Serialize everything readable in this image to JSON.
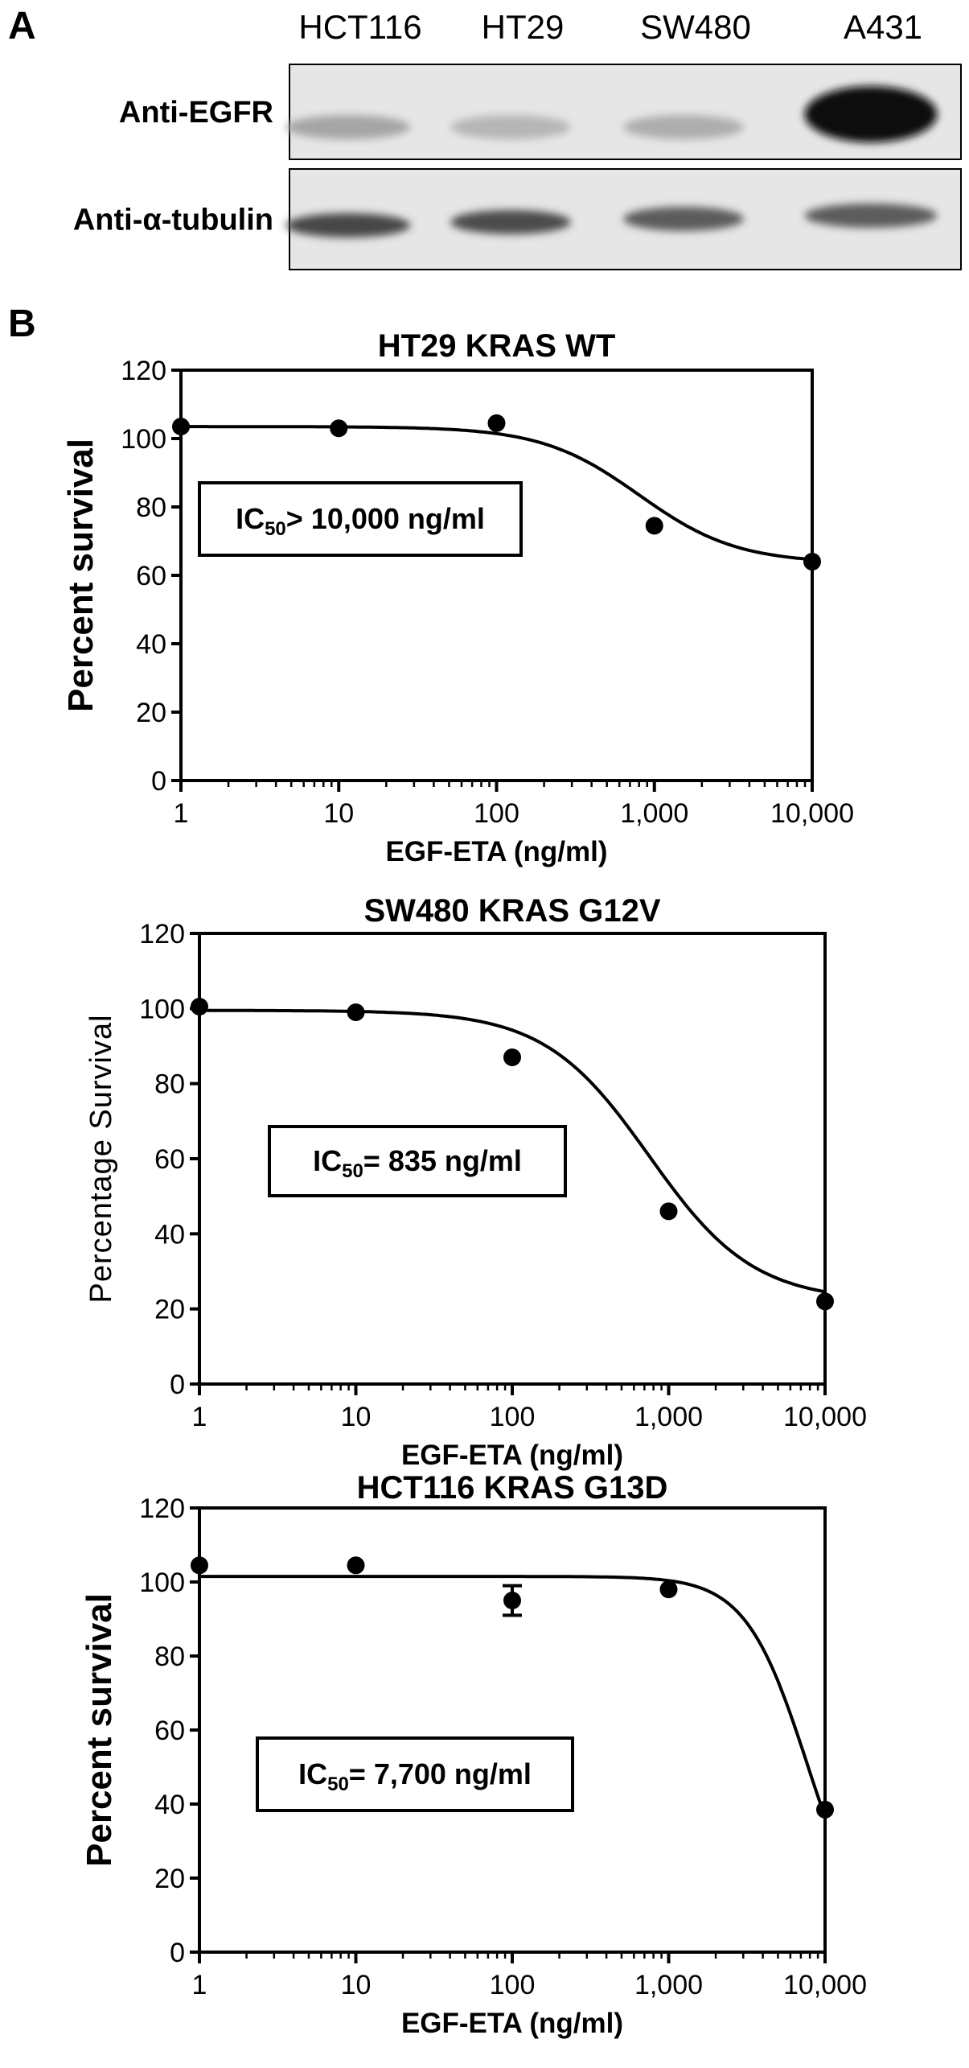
{
  "panel_a": {
    "letter": "A",
    "lanes": [
      "HCT116",
      "HT29",
      "SW480",
      "A431"
    ],
    "blots": [
      {
        "label": "Anti-EGFR",
        "band_intensity": [
          0.28,
          0.2,
          0.24,
          1.0
        ]
      },
      {
        "label": "Anti-α-tubulin",
        "band_intensity": [
          0.72,
          0.7,
          0.62,
          0.62
        ]
      }
    ]
  },
  "panel_b": {
    "letter": "B"
  },
  "chart_data": [
    {
      "type": "scatter",
      "title": "HT29 KRAS WT",
      "xlabel": "EGF-ETA (ng/ml)",
      "ylabel": "Percent survival",
      "ylabel_style": "bold",
      "x_scale": "log",
      "xlim": [
        1,
        10000
      ],
      "ylim": [
        0,
        120
      ],
      "xticks": [
        1,
        10,
        100,
        1000,
        10000
      ],
      "xtick_labels": [
        "1",
        "10",
        "100",
        "1,000",
        "10,000"
      ],
      "yticks": [
        0,
        20,
        40,
        60,
        80,
        100,
        120
      ],
      "points": [
        {
          "x": 1,
          "y": 103.5
        },
        {
          "x": 10,
          "y": 103
        },
        {
          "x": 100,
          "y": 104.5
        },
        {
          "x": 1000,
          "y": 74.5
        },
        {
          "x": 10000,
          "y": 64
        }
      ],
      "fit": {
        "top": 103.5,
        "bottom": 63.5,
        "ic50": 800,
        "hill": 1.4
      },
      "annotation": {
        "pre": "IC",
        "sub": "50",
        "post": "> 10,000 ng/ml"
      },
      "grid": false,
      "legend": "none"
    },
    {
      "type": "scatter",
      "title": "SW480 KRAS G12V",
      "xlabel": "EGF-ETA (ng/ml)",
      "ylabel": "Percentage Survival",
      "ylabel_style": "normal",
      "x_scale": "log",
      "xlim": [
        1,
        10000
      ],
      "ylim": [
        0,
        120
      ],
      "xticks": [
        1,
        10,
        100,
        1000,
        10000
      ],
      "xtick_labels": [
        "1",
        "10",
        "100",
        "1,000",
        "10,000"
      ],
      "yticks": [
        0,
        20,
        40,
        60,
        80,
        100,
        120
      ],
      "points": [
        {
          "x": 1,
          "y": 100.5
        },
        {
          "x": 10,
          "y": 99
        },
        {
          "x": 100,
          "y": 87
        },
        {
          "x": 1000,
          "y": 46
        },
        {
          "x": 10000,
          "y": 22
        }
      ],
      "fit": {
        "top": 99.5,
        "bottom": 22,
        "ic50": 750,
        "hill": 1.3
      },
      "annotation": {
        "pre": "IC",
        "sub": "50",
        "post": "= 835 ng/ml"
      },
      "grid": false,
      "legend": "none"
    },
    {
      "type": "scatter",
      "title": "HCT116 KRAS G13D",
      "xlabel": "EGF-ETA (ng/ml)",
      "ylabel": "Percent survival",
      "ylabel_style": "bold",
      "x_scale": "log",
      "xlim": [
        1,
        10000
      ],
      "ylim": [
        0,
        120
      ],
      "xticks": [
        1,
        10,
        100,
        1000,
        10000
      ],
      "xtick_labels": [
        "1",
        "10",
        "100",
        "1,000",
        "10,000"
      ],
      "yticks": [
        0,
        20,
        40,
        60,
        80,
        100,
        120
      ],
      "points": [
        {
          "x": 1,
          "y": 104.5
        },
        {
          "x": 10,
          "y": 104.5
        },
        {
          "x": 100,
          "y": 95,
          "err": 4
        },
        {
          "x": 1000,
          "y": 98
        },
        {
          "x": 10000,
          "y": 38.5
        }
      ],
      "fit": {
        "top": 101.5,
        "bottom": 0,
        "ic50": 7700,
        "hill": 2.2
      },
      "annotation": {
        "pre": "IC",
        "sub": "50",
        "post": "= 7,700 ng/ml"
      },
      "grid": false,
      "legend": "none"
    }
  ]
}
